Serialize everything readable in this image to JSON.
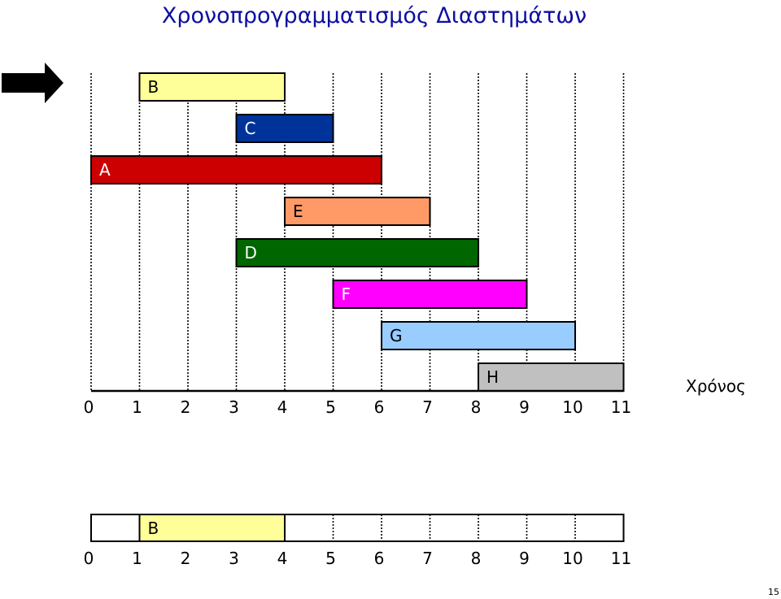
{
  "slide": {
    "title": "Χρονοπρογραμματισμός Διαστημάτων",
    "page_number": "15"
  },
  "chart_data": {
    "type": "interval-schedule",
    "time_ticks": [
      "0",
      "1",
      "2",
      "3",
      "4",
      "5",
      "6",
      "7",
      "8",
      "9",
      "10",
      "11"
    ],
    "axis_label": "Χρόνος",
    "intervals": [
      {
        "name": "B",
        "start": 1,
        "end": 4,
        "color": "#ffff99",
        "label_color": "#000000"
      },
      {
        "name": "C",
        "start": 3,
        "end": 5,
        "color": "#003399",
        "label_color": "#ffffff"
      },
      {
        "name": "A",
        "start": 0,
        "end": 6,
        "color": "#cc0000",
        "label_color": "#ffffff"
      },
      {
        "name": "E",
        "start": 4,
        "end": 7,
        "color": "#ff9966",
        "label_color": "#000000"
      },
      {
        "name": "D",
        "start": 3,
        "end": 8,
        "color": "#006600",
        "label_color": "#ffffff"
      },
      {
        "name": "F",
        "start": 5,
        "end": 9,
        "color": "#ff00ff",
        "label_color": "#ffffff"
      },
      {
        "name": "G",
        "start": 6,
        "end": 10,
        "color": "#99ccff",
        "label_color": "#000000"
      },
      {
        "name": "H",
        "start": 8,
        "end": 11,
        "color": "#c0c0c0",
        "label_color": "#000000"
      }
    ],
    "current_interval_index": 0,
    "selected": [
      {
        "name": "B",
        "start": 1,
        "end": 4,
        "color": "#ffff99"
      }
    ]
  }
}
